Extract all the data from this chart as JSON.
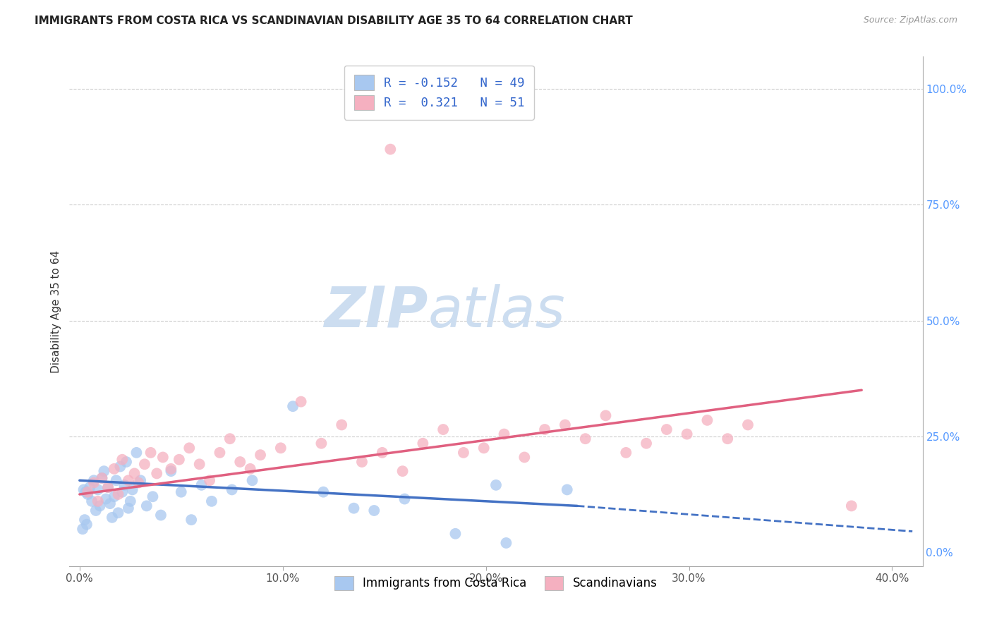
{
  "title": "IMMIGRANTS FROM COSTA RICA VS SCANDINAVIAN DISABILITY AGE 35 TO 64 CORRELATION CHART",
  "source": "Source: ZipAtlas.com",
  "ylabel": "Disability Age 35 to 64",
  "xlabel_ticks": [
    "0.0%",
    "10.0%",
    "20.0%",
    "30.0%",
    "40.0%"
  ],
  "xlabel_vals": [
    0.0,
    10.0,
    20.0,
    30.0,
    40.0
  ],
  "ylabel_ticks_right": [
    "100.0%",
    "75.0%",
    "50.0%",
    "25.0%",
    "0.0%"
  ],
  "ylabel_vals_right": [
    100.0,
    75.0,
    50.0,
    25.0,
    0.0
  ],
  "xlim": [
    -0.5,
    41.5
  ],
  "ylim": [
    -3.0,
    107.0
  ],
  "legend1_label_r": "R = -0.152",
  "legend1_label_n": "N = 49",
  "legend2_label_r": "R =  0.321",
  "legend2_label_n": "N = 51",
  "legend_bottom_label1": "Immigrants from Costa Rica",
  "legend_bottom_label2": "Scandinavians",
  "blue_color": "#a8c8f0",
  "pink_color": "#f5b0c0",
  "blue_line_color": "#4472c4",
  "pink_line_color": "#e06080",
  "watermark_zip_color": "#ccddf0",
  "watermark_atlas_color": "#ccddf0",
  "grid_color": "#cccccc",
  "blue_scatter_x": [
    0.2,
    0.3,
    0.4,
    0.5,
    0.6,
    0.7,
    0.8,
    0.9,
    1.0,
    1.1,
    1.2,
    1.3,
    1.4,
    1.5,
    1.6,
    1.7,
    1.8,
    1.9,
    2.0,
    2.1,
    2.2,
    2.3,
    2.4,
    2.5,
    2.6,
    2.8,
    3.0,
    3.3,
    3.6,
    4.0,
    4.5,
    5.0,
    5.5,
    6.0,
    6.5,
    7.5,
    8.5,
    10.5,
    12.0,
    13.5,
    14.5,
    16.0,
    18.5,
    20.5,
    24.0,
    0.15,
    0.25,
    0.35,
    21.0
  ],
  "blue_scatter_y": [
    13.5,
    13.0,
    12.5,
    14.0,
    11.0,
    15.5,
    9.0,
    13.5,
    10.0,
    16.0,
    17.5,
    11.5,
    14.0,
    10.5,
    7.5,
    12.0,
    15.5,
    8.5,
    18.5,
    13.0,
    14.5,
    19.5,
    9.5,
    11.0,
    13.5,
    21.5,
    15.5,
    10.0,
    12.0,
    8.0,
    17.5,
    13.0,
    7.0,
    14.5,
    11.0,
    13.5,
    15.5,
    31.5,
    13.0,
    9.5,
    9.0,
    11.5,
    4.0,
    14.5,
    13.5,
    5.0,
    7.0,
    6.0,
    2.0
  ],
  "pink_scatter_x": [
    0.4,
    0.7,
    0.9,
    1.1,
    1.4,
    1.7,
    1.9,
    2.1,
    2.4,
    2.7,
    2.9,
    3.2,
    3.5,
    3.8,
    4.1,
    4.5,
    4.9,
    5.4,
    5.9,
    6.4,
    6.9,
    7.4,
    7.9,
    8.4,
    8.9,
    9.9,
    10.9,
    11.9,
    12.9,
    13.9,
    14.9,
    15.9,
    16.9,
    17.9,
    18.9,
    19.9,
    20.9,
    21.9,
    22.9,
    23.9,
    24.9,
    25.9,
    26.9,
    27.9,
    28.9,
    29.9,
    30.9,
    31.9,
    32.9,
    38.0,
    15.3
  ],
  "pink_scatter_y": [
    13.0,
    15.0,
    11.0,
    16.0,
    14.0,
    18.0,
    12.5,
    20.0,
    15.5,
    17.0,
    15.0,
    19.0,
    21.5,
    17.0,
    20.5,
    18.0,
    20.0,
    22.5,
    19.0,
    15.5,
    21.5,
    24.5,
    19.5,
    18.0,
    21.0,
    22.5,
    32.5,
    23.5,
    27.5,
    19.5,
    21.5,
    17.5,
    23.5,
    26.5,
    21.5,
    22.5,
    25.5,
    20.5,
    26.5,
    27.5,
    24.5,
    29.5,
    21.5,
    23.5,
    26.5,
    25.5,
    28.5,
    24.5,
    27.5,
    10.0,
    87.0
  ],
  "blue_trend_x0": 0.0,
  "blue_trend_x1": 24.5,
  "blue_trend_y0": 15.5,
  "blue_trend_y1": 10.0,
  "blue_dash_x0": 24.5,
  "blue_dash_x1": 41.0,
  "blue_dash_y0": 10.0,
  "blue_dash_y1": 4.5,
  "pink_trend_x0": 0.0,
  "pink_trend_x1": 38.5,
  "pink_trend_y0": 12.5,
  "pink_trend_y1": 35.0
}
